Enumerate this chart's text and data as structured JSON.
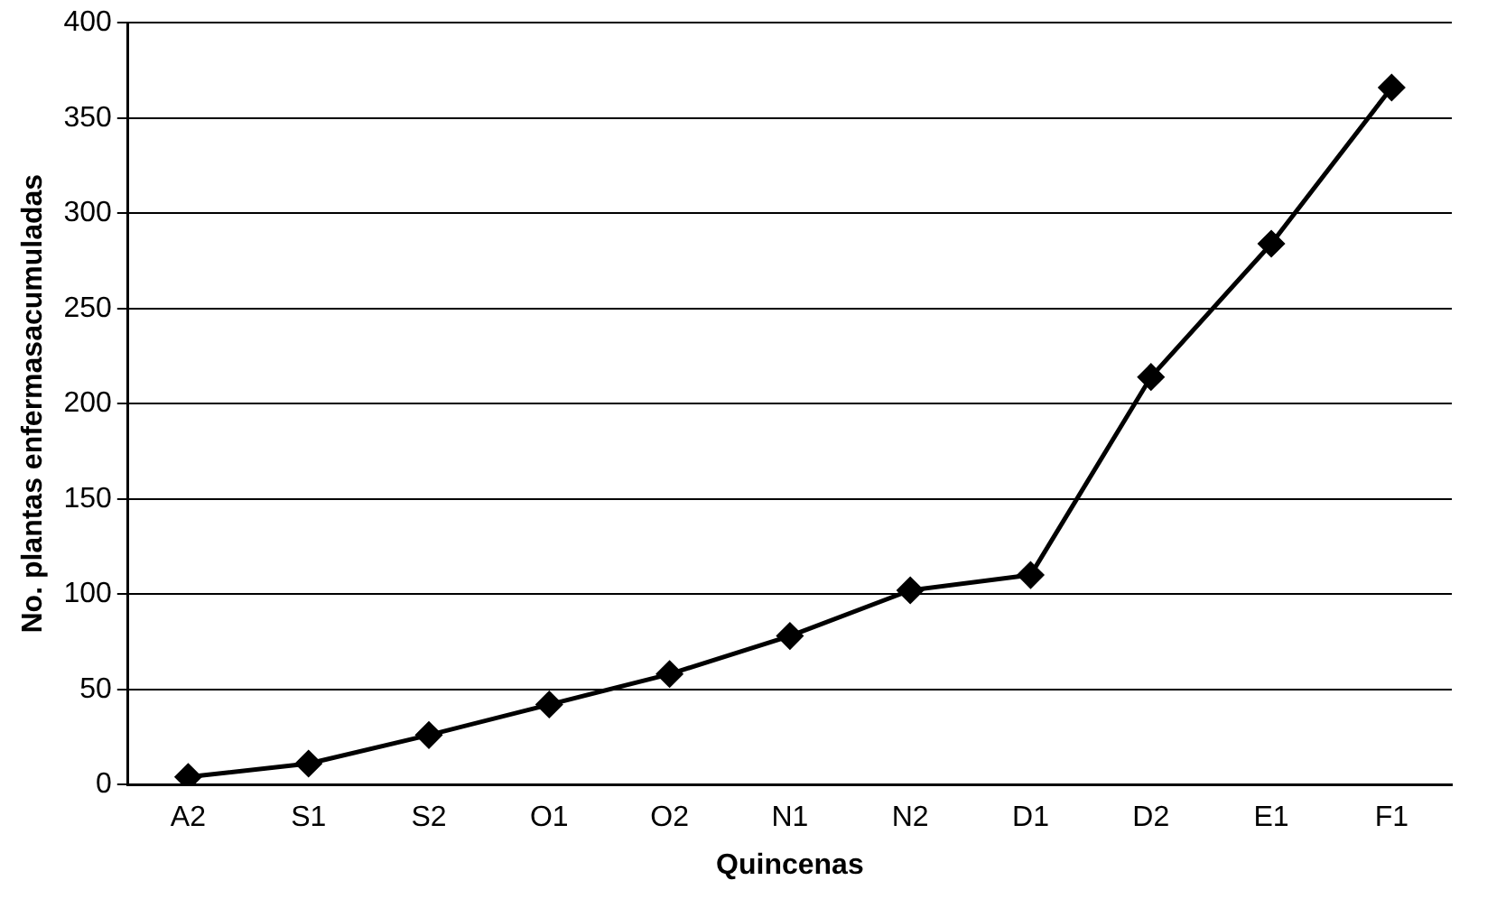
{
  "chart_data": {
    "type": "line",
    "xlabel": "Quincenas",
    "ylabel": "No. plantas enfermasacumuladas",
    "categories": [
      "A2",
      "S1",
      "S2",
      "O1",
      "O2",
      "N1",
      "N2",
      "D1",
      "D2",
      "E1",
      "F1"
    ],
    "series": [
      {
        "color": "#000000",
        "values": [
          4,
          11,
          26,
          42,
          58,
          78,
          102,
          110,
          214,
          284,
          366
        ]
      }
    ],
    "ylim": [
      0,
      400
    ],
    "yticks": [
      0,
      50,
      100,
      150,
      200,
      250,
      300,
      350,
      400
    ],
    "grid": "y",
    "legend": false,
    "marker": "diamond",
    "line_style": "solid"
  }
}
